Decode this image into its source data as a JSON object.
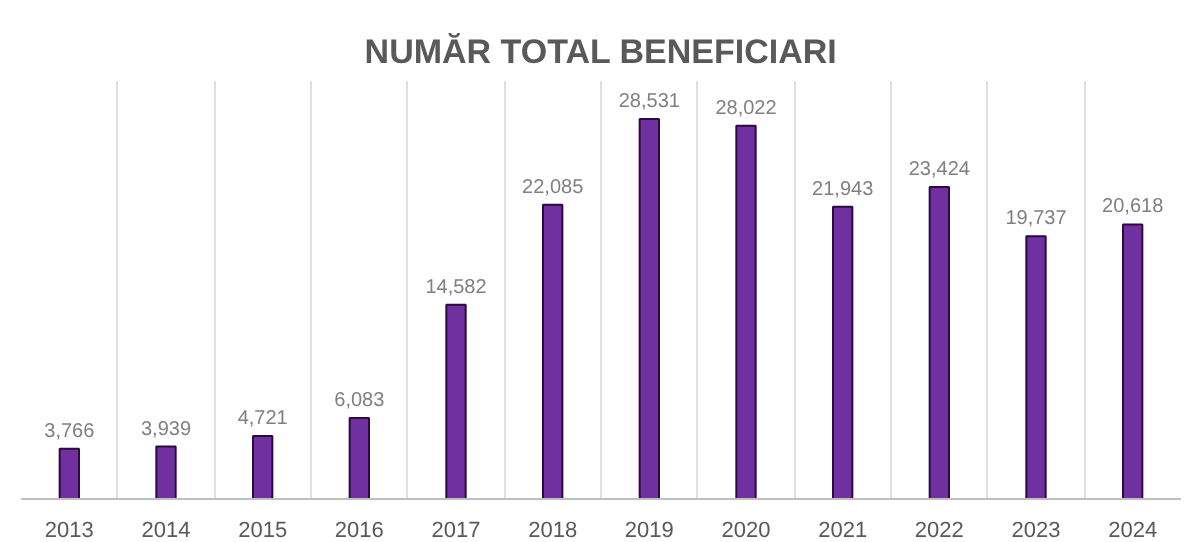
{
  "chart_data": {
    "type": "bar",
    "title": "NUMĂR TOTAL BENEFICIARI",
    "categories": [
      "2013",
      "2014",
      "2015",
      "2016",
      "2017",
      "2018",
      "2019",
      "2020",
      "2021",
      "2022",
      "2023",
      "2024"
    ],
    "values": [
      3766,
      3939,
      4721,
      6083,
      14582,
      22085,
      28531,
      28022,
      21943,
      23424,
      19737,
      20618
    ],
    "value_labels": [
      "3,766",
      "3,939",
      "4,721",
      "6,083",
      "14,582",
      "22,085",
      "28,531",
      "28,022",
      "21,943",
      "23,424",
      "19,737",
      "20,618"
    ],
    "color": "#7030a0",
    "grid": "x"
  }
}
